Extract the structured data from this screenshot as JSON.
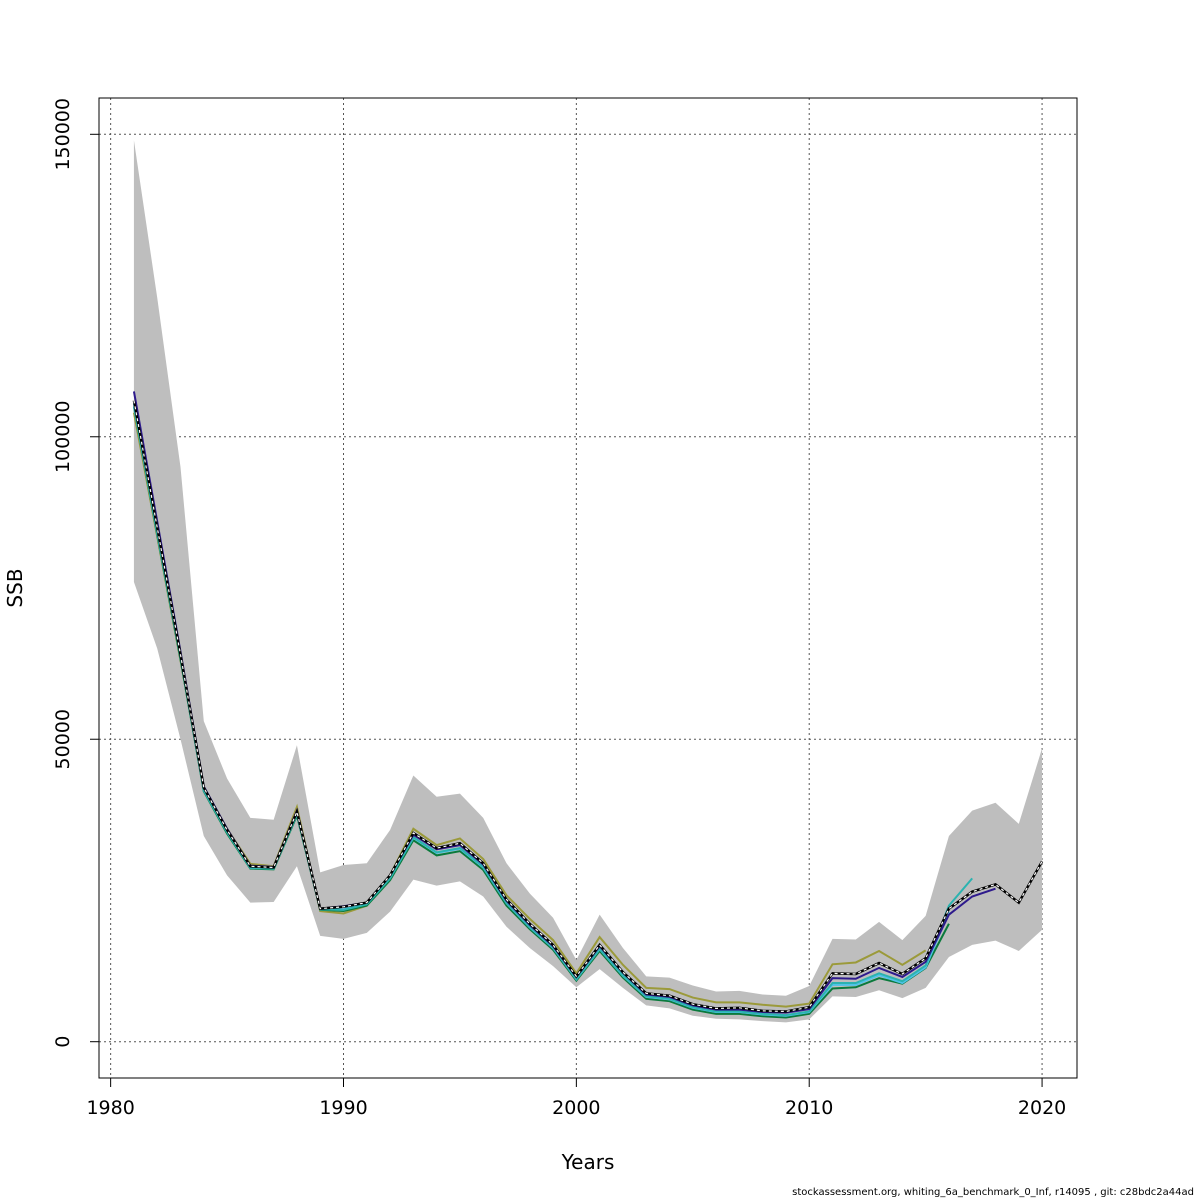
{
  "chart_data": {
    "type": "line",
    "title": "",
    "xlabel": "Years",
    "ylabel": "SSB",
    "xlim": [
      1979.5,
      2021.5
    ],
    "ylim": [
      -6000,
      156000
    ],
    "x_ticks": [
      1980,
      1990,
      2000,
      2010,
      2020
    ],
    "x_tick_labels": [
      "1980",
      "1990",
      "2000",
      "2010",
      "2020"
    ],
    "y_ticks": [
      0,
      50000,
      100000,
      150000
    ],
    "y_tick_labels": [
      "0",
      "50000",
      "100000",
      "150000"
    ],
    "grid": true,
    "legend": "none",
    "colors": {
      "band": "#bebebe",
      "base": "#000000",
      "ret1": "#ffffff",
      "ret2": "#2e1a8c",
      "ret3": "#2bb3b0",
      "ret4": "#4fc3e8",
      "ret5": "#0a7a3c",
      "ret6": "#9b9a3a",
      "ret7": "#159b8a"
    },
    "confidence_band": {
      "x": [
        1981,
        1982,
        1983,
        1984,
        1985,
        1986,
        1987,
        1988,
        1989,
        1990,
        1991,
        1992,
        1993,
        1994,
        1995,
        1996,
        1997,
        1998,
        1999,
        2000,
        2001,
        2002,
        2003,
        2004,
        2005,
        2006,
        2007,
        2008,
        2009,
        2010,
        2011,
        2012,
        2013,
        2014,
        2015,
        2016,
        2017,
        2018,
        2019,
        2020
      ],
      "lower": [
        76000,
        65000,
        50000,
        34000,
        27500,
        23000,
        23100,
        29000,
        17500,
        17000,
        18000,
        21500,
        26800,
        25800,
        26500,
        24000,
        19000,
        15500,
        12500,
        9000,
        12000,
        8900,
        6000,
        5500,
        4300,
        3800,
        3700,
        3400,
        3200,
        3700,
        7500,
        7400,
        8500,
        7200,
        8900,
        14000,
        16000,
        16700,
        15000,
        18500
      ],
      "upper": [
        149000,
        123000,
        95000,
        53000,
        43500,
        37000,
        36700,
        49000,
        28000,
        29200,
        29500,
        35000,
        44000,
        40500,
        41000,
        37000,
        29500,
        24500,
        20500,
        13500,
        21000,
        15500,
        10800,
        10600,
        9300,
        8300,
        8400,
        7800,
        7600,
        9200,
        17000,
        16900,
        19800,
        16800,
        20800,
        34000,
        38200,
        39500,
        36000,
        48500
      ]
    },
    "series": [
      {
        "key": "base",
        "x": [
          1981,
          1982,
          1983,
          1984,
          1985,
          1986,
          1987,
          1988,
          1989,
          1990,
          1991,
          1992,
          1993,
          1994,
          1995,
          1996,
          1997,
          1998,
          1999,
          2000,
          2001,
          2002,
          2003,
          2004,
          2005,
          2006,
          2007,
          2008,
          2009,
          2010,
          2011,
          2012,
          2013,
          2014,
          2015,
          2016,
          2017,
          2018,
          2019,
          2020
        ],
        "y": [
          106000,
          85000,
          64000,
          42000,
          35000,
          29000,
          28800,
          38000,
          22000,
          22300,
          23000,
          27500,
          34500,
          32000,
          32800,
          29500,
          23500,
          19500,
          16000,
          10800,
          16000,
          11500,
          8000,
          7600,
          6200,
          5500,
          5600,
          5100,
          5000,
          5700,
          11300,
          11200,
          13000,
          11200,
          13800,
          22000,
          24800,
          26000,
          23000,
          29800
        ]
      },
      {
        "key": "ret1",
        "x": [
          1981,
          1982,
          1983,
          1984,
          1985,
          1986,
          1987,
          1988,
          1989,
          1990,
          1991,
          1992,
          1993,
          1994,
          1995,
          1996,
          1997,
          1998,
          1999,
          2000,
          2001,
          2002,
          2003,
          2004,
          2005,
          2006,
          2007,
          2008,
          2009,
          2010,
          2011,
          2012,
          2013,
          2014,
          2015,
          2016,
          2017,
          2018,
          2019
        ],
        "y": [
          106000,
          85000,
          64000,
          42000,
          35000,
          29000,
          28800,
          38000,
          22000,
          22300,
          23000,
          27500,
          34500,
          32000,
          32800,
          29500,
          23500,
          19500,
          16000,
          10800,
          16000,
          11500,
          8000,
          7600,
          6200,
          5500,
          5600,
          5100,
          5000,
          5700,
          11300,
          11200,
          13000,
          11200,
          13800,
          22000,
          24800,
          26000,
          23000
        ]
      },
      {
        "key": "ret2",
        "x": [
          1981,
          1982,
          1983,
          1984,
          1985,
          1986,
          1987,
          1988,
          1989,
          1990,
          1991,
          1992,
          1993,
          1994,
          1995,
          1996,
          1997,
          1998,
          1999,
          2000,
          2001,
          2002,
          2003,
          2004,
          2005,
          2006,
          2007,
          2008,
          2009,
          2010,
          2011,
          2012,
          2013,
          2014,
          2015,
          2016,
          2017,
          2018
        ],
        "y": [
          107500,
          86000,
          64500,
          42200,
          35200,
          29100,
          28900,
          38200,
          22000,
          22400,
          23000,
          27500,
          34200,
          31800,
          32500,
          29300,
          23300,
          19300,
          15800,
          10700,
          15800,
          11400,
          7800,
          7400,
          6000,
          5300,
          5300,
          4900,
          4800,
          5400,
          10500,
          10400,
          12200,
          10700,
          13200,
          21000,
          24000,
          25300
        ]
      },
      {
        "key": "ret3",
        "x": [
          1981,
          1982,
          1983,
          1984,
          1985,
          1986,
          1987,
          1988,
          1989,
          1990,
          1991,
          1992,
          1993,
          1994,
          1995,
          1996,
          1997,
          1998,
          1999,
          2000,
          2001,
          2002,
          2003,
          2004,
          2005,
          2006,
          2007,
          2008,
          2009,
          2010,
          2011,
          2012,
          2013,
          2014,
          2015,
          2016,
          2017
        ],
        "y": [
          105000,
          84000,
          63500,
          41500,
          34600,
          28700,
          28600,
          37600,
          21900,
          21800,
          22700,
          27000,
          33800,
          31300,
          32000,
          28900,
          23000,
          19000,
          15600,
          10400,
          15400,
          11000,
          7500,
          7100,
          5700,
          5000,
          5000,
          4600,
          4400,
          5000,
          9700,
          9700,
          11300,
          10000,
          12600,
          22500,
          27000
        ]
      },
      {
        "key": "ret4",
        "x": [
          1981,
          1982,
          1983,
          1984,
          1985,
          1986,
          1987,
          1988,
          1989,
          1990,
          1991,
          1992,
          1993,
          1994,
          1995,
          1996,
          1997,
          1998,
          1999,
          2000,
          2001,
          2002,
          2003,
          2004,
          2005,
          2006,
          2007,
          2008,
          2009,
          2010,
          2011,
          2012,
          2013,
          2014,
          2015,
          2016
        ],
        "y": [
          105500,
          84500,
          63800,
          41700,
          34700,
          28800,
          28700,
          37700,
          21900,
          21900,
          22800,
          27100,
          33700,
          31200,
          31900,
          28800,
          22900,
          18900,
          15500,
          10300,
          15300,
          10900,
          7400,
          7000,
          5600,
          4900,
          4900,
          4500,
          4300,
          4900,
          9400,
          9400,
          11000,
          9700,
          12300,
          21500
        ]
      },
      {
        "key": "ret5",
        "x": [
          1981,
          1982,
          1983,
          1984,
          1985,
          1986,
          1987,
          1988,
          1989,
          1990,
          1991,
          1992,
          1993,
          1994,
          1995,
          1996,
          1997,
          1998,
          1999,
          2000,
          2001,
          2002,
          2003,
          2004,
          2005,
          2006,
          2007,
          2008,
          2009,
          2010,
          2011,
          2012,
          2013,
          2014,
          2015,
          2016
        ],
        "y": [
          105000,
          83800,
          63200,
          41400,
          34400,
          28600,
          28500,
          37400,
          21800,
          21600,
          22500,
          26700,
          33300,
          30800,
          31500,
          28400,
          22500,
          18600,
          15200,
          10100,
          15000,
          10600,
          7100,
          6700,
          5300,
          4600,
          4600,
          4200,
          4000,
          4600,
          8800,
          9000,
          10500,
          9600,
          12200,
          19500
        ]
      },
      {
        "key": "ret6",
        "x": [
          1981,
          1982,
          1983,
          1984,
          1985,
          1986,
          1987,
          1988,
          1989,
          1990,
          1991,
          1992,
          1993,
          1994,
          1995,
          1996,
          1997,
          1998,
          1999,
          2000,
          2001,
          2002,
          2003,
          2004,
          2005,
          2006,
          2007,
          2008,
          2009,
          2010,
          2011,
          2012,
          2013,
          2014,
          2015
        ],
        "y": [
          104000,
          83500,
          63000,
          42000,
          35200,
          29400,
          29000,
          38800,
          21600,
          21200,
          22500,
          27500,
          35200,
          32500,
          33600,
          30200,
          24200,
          20300,
          16800,
          11300,
          17300,
          12700,
          8900,
          8700,
          7300,
          6500,
          6500,
          6100,
          5800,
          6300,
          12800,
          13100,
          15000,
          12700,
          15100
        ]
      }
    ]
  },
  "footer": {
    "text": "stockassessment.org, whiting_6a_benchmark_0_Inf, r14095 , git: c28bdc2a44ad"
  }
}
